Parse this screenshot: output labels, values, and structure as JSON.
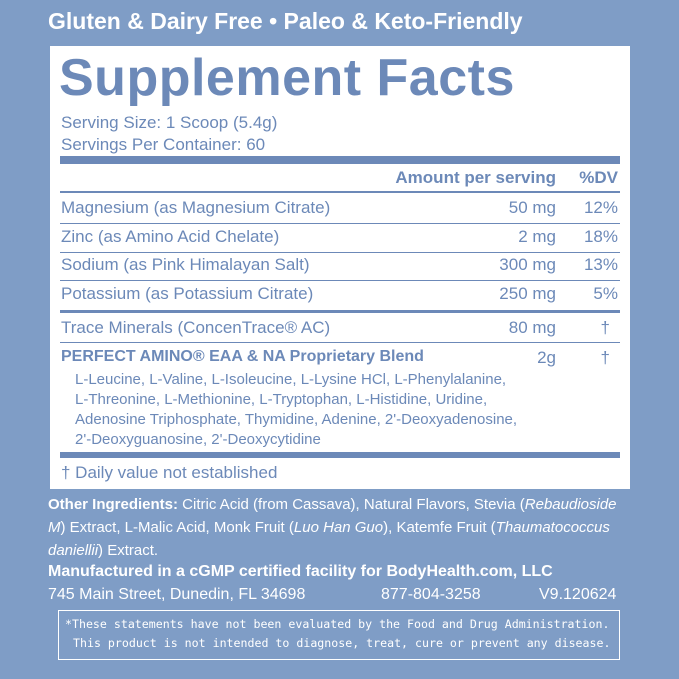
{
  "header": "Gluten & Dairy Free • Paleo & Keto-Friendly",
  "title": "Supplement Facts",
  "serving_size": "Serving Size: 1 Scoop (5.4g)",
  "servings_per_container": "Servings Per Container: 60",
  "columns": [
    "Amount per serving",
    "%DV"
  ],
  "rows": [
    [
      "Magnesium (as Magnesium Citrate)",
      "50 mg",
      "12%"
    ],
    [
      "Zinc (as Amino Acid Chelate)",
      "2 mg",
      "18%"
    ],
    [
      "Sodium (as Pink Himalayan Salt)",
      "300 mg",
      "13%"
    ],
    [
      "Potassium (as Potassium Citrate)",
      "250 mg",
      "5%"
    ]
  ],
  "trace": [
    "Trace Minerals (ConcenTrace® AC)",
    "80 mg",
    "†"
  ],
  "blend": {
    "name": "PERFECT AMINO® EAA & NA Proprietary Blend",
    "amount": "2g",
    "dv": "†",
    "ingredients": [
      "L-Leucine, L-Valine, L-Isoleucine, L-Lysine HCl, L-Phenylalanine,",
      "L-Threonine, L-Methionine, L-Tryptophan, L-Histidine, Uridine,",
      "Adenosine Triphosphate, Thymidine, Adenine, 2'-Deoxyadenosine,",
      "2'-Deoxyguanosine, 2'-Deoxycytidine"
    ]
  },
  "footnote": "† Daily value not established",
  "other_ingredients": {
    "label": "Other Ingredients:",
    "segments": [
      " Citric Acid (from Cassava), Natural Flavors, Stevia (",
      "Rebaudioside M",
      ") Extract, L-Malic Acid, Monk Fruit (",
      "Luo Han Guo",
      "), Katemfe Fruit (",
      "Thaumatococcus daniellii",
      ") Extract."
    ]
  },
  "manufacturer": "Manufactured in a cGMP certified facility for BodyHealth.com, LLC",
  "address": "745 Main Street, Dunedin, FL 34698",
  "phone": "877-804-3258",
  "version": "V9.120624",
  "disclaimer": [
    "*These statements have not been evaluated by the Food and Drug Administration.",
    "This product is not intended to diagnose, treat, cure or prevent any disease."
  ]
}
